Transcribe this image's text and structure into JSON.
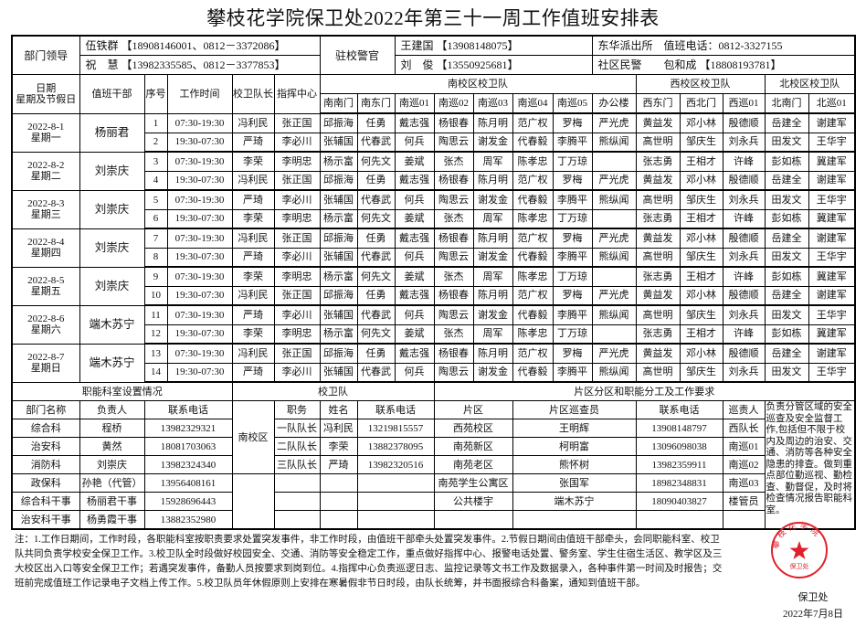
{
  "title": "攀枝花学院保卫处2022年第三十一周工作值班安排表",
  "leaders": {
    "label": "部门领导",
    "rows": [
      "伍铁群 【18908146001、0812－3372086】",
      "祝　慧 【13982335585、0812－3377853】"
    ],
    "police_label": "驻校警官",
    "police": [
      "王建国 【13908148075】",
      "刘　俊 【13550925681】"
    ],
    "station": [
      "东华派出所　值班电话：0812-3327155",
      "社区民警　　包和成 【18808193781】"
    ]
  },
  "headers": {
    "date": "日期",
    "weekday": "星期及节假日",
    "cadre": "值班干部",
    "no": "序号",
    "time": "工作时间",
    "captain": "校卫队长",
    "command": "指挥中心",
    "south": "南校区校卫队",
    "west": "西校区校卫队",
    "north": "北校区校卫队",
    "posts": [
      "南南门",
      "南东门",
      "南巡01",
      "南巡02",
      "南巡03",
      "南巡04",
      "南巡05",
      "办公楼",
      "西东门",
      "西北门",
      "西巡01",
      "北南门",
      "北巡01"
    ]
  },
  "schedule": [
    {
      "date": "2022-8-1",
      "weekday": "星期一",
      "cadre": "杨丽君",
      "shifts": [
        {
          "no": "1",
          "time": "07:30-19:30",
          "cells": [
            "冯利民",
            "张正国",
            "邱振海",
            "任勇",
            "戴志强",
            "杨银春",
            "陈月明",
            "范广权",
            "罗梅",
            "严光虎",
            "黄益发",
            "邓小林",
            "殷德顺",
            "岳建全",
            "谢建军"
          ]
        },
        {
          "no": "2",
          "time": "19:30-07:30",
          "cells": [
            "严琦",
            "李必川",
            "张辅国",
            "代春武",
            "何兵",
            "陶思云",
            "谢发金",
            "代春毅",
            "李腾平",
            "熊纵闻",
            "高世明",
            "邹庆生",
            "刘永兵",
            "田发文",
            "王华宇"
          ]
        }
      ]
    },
    {
      "date": "2022-8-2",
      "weekday": "星期二",
      "cadre": "刘崇庆",
      "shifts": [
        {
          "no": "3",
          "time": "07:30-19:30",
          "cells": [
            "李荣",
            "李明忠",
            "杨示富",
            "何先文",
            "姜斌",
            "张杰",
            "周军",
            "陈孝忠",
            "丁万琼",
            "",
            "张志勇",
            "王相才",
            "许峰",
            "彭如栋",
            "冀建军"
          ]
        },
        {
          "no": "4",
          "time": "19:30-07:30",
          "cells": [
            "冯利民",
            "张正国",
            "邱振海",
            "任勇",
            "戴志强",
            "杨银春",
            "陈月明",
            "范广权",
            "罗梅",
            "严光虎",
            "黄益发",
            "邓小林",
            "殷德顺",
            "岳建全",
            "谢建军"
          ]
        }
      ]
    },
    {
      "date": "2022-8-3",
      "weekday": "星期三",
      "cadre": "刘崇庆",
      "shifts": [
        {
          "no": "5",
          "time": "07:30-19:30",
          "cells": [
            "严琦",
            "李必川",
            "张辅国",
            "代春武",
            "何兵",
            "陶思云",
            "谢发金",
            "代春毅",
            "李腾平",
            "熊纵闻",
            "高世明",
            "邹庆生",
            "刘永兵",
            "田发文",
            "王华宇"
          ]
        },
        {
          "no": "6",
          "time": "19:30-07:30",
          "cells": [
            "李荣",
            "李明忠",
            "杨示富",
            "何先文",
            "姜斌",
            "张杰",
            "周军",
            "陈孝忠",
            "丁万琼",
            "",
            "张志勇",
            "王相才",
            "许峰",
            "彭如栋",
            "冀建军"
          ]
        }
      ]
    },
    {
      "date": "2022-8-4",
      "weekday": "星期四",
      "cadre": "刘崇庆",
      "shifts": [
        {
          "no": "7",
          "time": "07:30-19:30",
          "cells": [
            "冯利民",
            "张正国",
            "邱振海",
            "任勇",
            "戴志强",
            "杨银春",
            "陈月明",
            "范广权",
            "罗梅",
            "严光虎",
            "黄益发",
            "邓小林",
            "殷德顺",
            "岳建全",
            "谢建军"
          ]
        },
        {
          "no": "8",
          "time": "19:30-07:30",
          "cells": [
            "严琦",
            "李必川",
            "张辅国",
            "代春武",
            "何兵",
            "陶思云",
            "谢发金",
            "代春毅",
            "李腾平",
            "熊纵闻",
            "高世明",
            "邹庆生",
            "刘永兵",
            "田发文",
            "王华宇"
          ]
        }
      ]
    },
    {
      "date": "2022-8-5",
      "weekday": "星期五",
      "cadre": "刘崇庆",
      "shifts": [
        {
          "no": "9",
          "time": "07:30-19:30",
          "cells": [
            "李荣",
            "李明忠",
            "杨示富",
            "何先文",
            "姜斌",
            "张杰",
            "周军",
            "陈孝忠",
            "丁万琼",
            "",
            "张志勇",
            "王相才",
            "许峰",
            "彭如栋",
            "冀建军"
          ]
        },
        {
          "no": "10",
          "time": "19:30-07:30",
          "cells": [
            "冯利民",
            "张正国",
            "邱振海",
            "任勇",
            "戴志强",
            "杨银春",
            "陈月明",
            "范广权",
            "罗梅",
            "严光虎",
            "黄益发",
            "邓小林",
            "殷德顺",
            "岳建全",
            "谢建军"
          ]
        }
      ]
    },
    {
      "date": "2022-8-6",
      "weekday": "星期六",
      "cadre": "端木苏宁",
      "shifts": [
        {
          "no": "11",
          "time": "07:30-19:30",
          "cells": [
            "严琦",
            "李必川",
            "张辅国",
            "代春武",
            "何兵",
            "陶思云",
            "谢发金",
            "代春毅",
            "李腾平",
            "熊纵闻",
            "高世明",
            "邹庆生",
            "刘永兵",
            "田发文",
            "王华宇"
          ]
        },
        {
          "no": "12",
          "time": "19:30-07:30",
          "cells": [
            "李荣",
            "李明忠",
            "杨示富",
            "何先文",
            "姜斌",
            "张杰",
            "周军",
            "陈孝忠",
            "丁万琼",
            "",
            "张志勇",
            "王相才",
            "许峰",
            "彭如栋",
            "冀建军"
          ]
        }
      ]
    },
    {
      "date": "2022-8-7",
      "weekday": "星期日",
      "cadre": "端木苏宁",
      "shifts": [
        {
          "no": "13",
          "time": "07:30-19:30",
          "cells": [
            "冯利民",
            "张正国",
            "邱振海",
            "任勇",
            "戴志强",
            "杨银春",
            "陈月明",
            "范广权",
            "罗梅",
            "严光虎",
            "黄益发",
            "邓小林",
            "殷德顺",
            "岳建全",
            "谢建军"
          ]
        },
        {
          "no": "14",
          "time": "19:30-07:30",
          "cells": [
            "严琦",
            "李必川",
            "张辅国",
            "代春武",
            "何兵",
            "陶思云",
            "谢发金",
            "代春毅",
            "李腾平",
            "熊纵闻",
            "高世明",
            "邹庆生",
            "刘永兵",
            "田发文",
            "王华宇"
          ]
        }
      ]
    }
  ],
  "bottom": {
    "dept_title": "职能科室设置情况",
    "guard_title": "校卫队",
    "area_title": "片区分区和职能分工及工作要求",
    "dept_headers": [
      "部门名称",
      "负责人",
      "联系电话"
    ],
    "guard_campus": "南校区",
    "guard_headers": [
      "职务",
      "姓名",
      "联系电话"
    ],
    "area_headers": [
      "片区",
      "片区巡查员",
      "联系电话",
      "巡责人"
    ],
    "requirement": "负责分管区域的安全巡查及安全监督工作,包括但不限于校内及周边的治安、交通、消防等各种安全隐患的排查。做到重点部位勤巡视、勤检查、勤督促，及时将检查情况报告职能科室。",
    "depts": [
      [
        "综合科",
        "程桥",
        "13982329321"
      ],
      [
        "治安科",
        "黄然",
        "18081703063"
      ],
      [
        "消防科",
        "刘崇庆",
        "13982324340"
      ],
      [
        "政保科",
        "孙艳（代管）",
        "13956408161"
      ],
      [
        "综合科干事",
        "杨丽君干事",
        "15928696443"
      ],
      [
        "治安科干事",
        "杨勇霞干事",
        "13882352980"
      ]
    ],
    "guards": [
      [
        "一队队长",
        "冯利民",
        "13219815557"
      ],
      [
        "二队队长",
        "李荣",
        "13882378095"
      ],
      [
        "三队队长",
        "严琦",
        "13982320516"
      ]
    ],
    "areas": [
      [
        "西苑校区",
        "王明辉",
        "13908148797",
        "西队长"
      ],
      [
        "南苑新区",
        "柯明富",
        "13096098038",
        "南巡01"
      ],
      [
        "南苑老区",
        "熊怀树",
        "13982359911",
        "南巡02"
      ],
      [
        "南苑学生公寓区",
        "张国军",
        "18982348831",
        "南巡03"
      ],
      [
        "公共楼宇",
        "端木苏宁",
        "18090403827",
        "楼管员"
      ],
      [
        "",
        "",
        "",
        ""
      ]
    ]
  },
  "notes": "注：1.工作日期间，工作时段，各职能科室按职责要求处置突发事件，非工作时段，由值班干部牵头处置突发事件。2.节假日期间由值班干部牵头，会同职能科室、校卫队共同负责学校安全保卫工作。3.校卫队全时段做好校园安全、交通、消防等安全稳定工作，重点做好指挥中心、报警电话处置、警务室、学生住宿生活区、教学区及三大校区出入口等安全保卫工作；若遇突发事件，备勤人员按要求到岗到位。4.指挥中心负责巡逻日志、监控记录等文书工作及数据录入，各种事件第一时间及时报告；交班前完成值班工作记录电子文档上传工作。5.校卫队员年休假原则上安排在寒暑假非节日时段，由队长统筹，并书面报综合科备案，通知到值班干部。",
  "stamp": {
    "ring_text": "攀枝花学院",
    "inner_text": "保卫处",
    "color": "#e0202a"
  },
  "signature": "保卫处",
  "sign_date": "2022年7月8日"
}
